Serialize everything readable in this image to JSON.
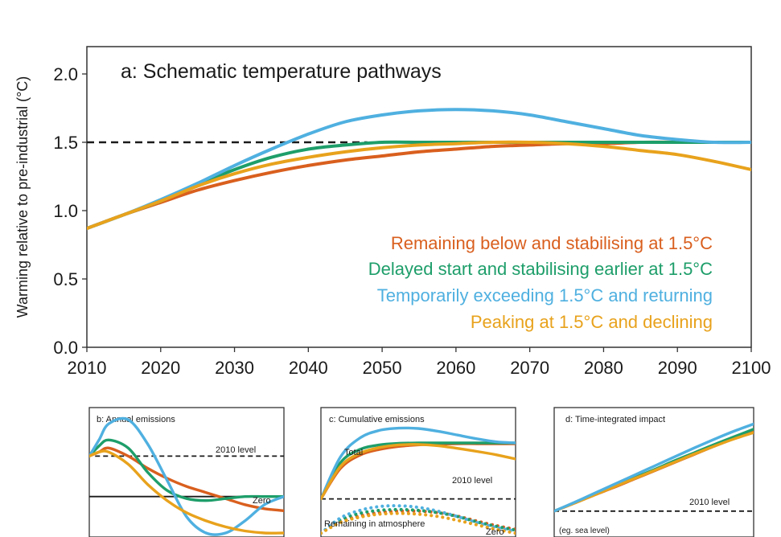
{
  "chart_data": [
    {
      "type": "line",
      "panel": "a",
      "title": "a: Schematic temperature pathways",
      "xlabel": "",
      "ylabel": "Warming relative to pre-industrial (°C)",
      "xlim": [
        2010,
        2100
      ],
      "ylim": [
        0.0,
        2.2
      ],
      "xticks": [
        "2010",
        "2020",
        "2030",
        "2040",
        "2050",
        "2060",
        "2070",
        "2080",
        "2090",
        "2100"
      ],
      "yticks": [
        "0.0",
        "0.5",
        "1.0",
        "1.5",
        "2.0"
      ],
      "grid": false,
      "legend_position": "bottom-right",
      "reference_lines": [
        {
          "y": 1.5,
          "x_from": 2010,
          "x_to": 2048,
          "style": "dashed",
          "color": "#1a1a1a"
        }
      ],
      "series": [
        {
          "name": "Remaining below and stabilising at 1.5°C",
          "color": "#D95F1E",
          "x": [
            2010,
            2015,
            2020,
            2025,
            2030,
            2035,
            2040,
            2045,
            2050,
            2055,
            2060,
            2065,
            2070,
            2075,
            2080,
            2085,
            2090,
            2095,
            2100
          ],
          "y": [
            0.87,
            0.97,
            1.06,
            1.15,
            1.22,
            1.28,
            1.33,
            1.37,
            1.4,
            1.43,
            1.45,
            1.47,
            1.48,
            1.49,
            1.49,
            1.5,
            1.5,
            1.5,
            1.5
          ]
        },
        {
          "name": "Delayed start and stabilising earlier at 1.5°C",
          "color": "#1E9E6A",
          "x": [
            2010,
            2015,
            2020,
            2025,
            2030,
            2035,
            2040,
            2045,
            2050,
            2055,
            2060,
            2065,
            2070,
            2075,
            2080,
            2085,
            2090,
            2095,
            2100
          ],
          "y": [
            0.87,
            0.97,
            1.07,
            1.19,
            1.3,
            1.39,
            1.45,
            1.48,
            1.5,
            1.5,
            1.5,
            1.5,
            1.5,
            1.5,
            1.5,
            1.5,
            1.5,
            1.5,
            1.5
          ]
        },
        {
          "name": "Temporarily exceeding 1.5°C and returning",
          "color": "#4FB0E0",
          "x": [
            2010,
            2015,
            2020,
            2025,
            2030,
            2035,
            2040,
            2045,
            2050,
            2055,
            2060,
            2065,
            2070,
            2075,
            2080,
            2085,
            2090,
            2095,
            2100
          ],
          "y": [
            0.87,
            0.97,
            1.08,
            1.2,
            1.33,
            1.45,
            1.56,
            1.65,
            1.7,
            1.73,
            1.74,
            1.73,
            1.7,
            1.65,
            1.6,
            1.55,
            1.52,
            1.5,
            1.5
          ]
        },
        {
          "name": "Peaking at 1.5°C and declining",
          "color": "#E8A21C",
          "x": [
            2010,
            2015,
            2020,
            2025,
            2030,
            2035,
            2040,
            2045,
            2050,
            2055,
            2060,
            2065,
            2070,
            2075,
            2080,
            2085,
            2090,
            2095,
            2100
          ],
          "y": [
            0.87,
            0.97,
            1.07,
            1.18,
            1.27,
            1.34,
            1.39,
            1.43,
            1.46,
            1.48,
            1.49,
            1.5,
            1.5,
            1.49,
            1.47,
            1.44,
            1.41,
            1.36,
            1.3
          ]
        }
      ]
    },
    {
      "type": "line",
      "panel": "b",
      "title": "b: Annual emissions",
      "xlim": [
        0,
        10
      ],
      "ylim": [
        -1.0,
        2.2
      ],
      "annotations": [
        "2010 level",
        "Zero"
      ],
      "reference_lines": [
        {
          "y": 1.0,
          "x_from": 0.3,
          "x_to": 10,
          "style": "dashed",
          "label": "2010 level"
        },
        {
          "y": 0.0,
          "x_from": 0,
          "x_to": 10,
          "style": "solid",
          "label": "Zero"
        }
      ],
      "series": [
        {
          "color": "#D95F1E",
          "x": [
            0,
            0.5,
            1,
            2,
            3,
            4,
            5,
            6,
            7,
            8,
            9,
            10
          ],
          "y": [
            1.0,
            1.1,
            1.2,
            1.0,
            0.7,
            0.45,
            0.25,
            0.1,
            -0.05,
            -0.2,
            -0.3,
            -0.35
          ]
        },
        {
          "color": "#1E9E6A",
          "x": [
            0,
            0.5,
            1,
            2,
            3,
            4,
            5,
            6,
            7,
            8,
            9,
            10
          ],
          "y": [
            1.0,
            1.25,
            1.4,
            1.2,
            0.6,
            0.15,
            -0.05,
            -0.1,
            -0.05,
            0.0,
            0.0,
            0.0
          ]
        },
        {
          "color": "#4FB0E0",
          "x": [
            0,
            0.5,
            1,
            2,
            3,
            4,
            5,
            6,
            7,
            8,
            9,
            10
          ],
          "y": [
            1.0,
            1.4,
            1.8,
            1.9,
            1.3,
            0.4,
            -0.5,
            -0.9,
            -0.9,
            -0.6,
            -0.2,
            0.0
          ]
        },
        {
          "color": "#E8A21C",
          "x": [
            0,
            0.5,
            1,
            2,
            3,
            4,
            5,
            6,
            7,
            8,
            9,
            10
          ],
          "y": [
            1.0,
            1.1,
            1.1,
            0.8,
            0.3,
            -0.1,
            -0.4,
            -0.6,
            -0.75,
            -0.85,
            -0.9,
            -0.9
          ]
        }
      ]
    },
    {
      "type": "line",
      "panel": "c",
      "title": "c: Cumulative emissions",
      "xlim": [
        0,
        10
      ],
      "ylim": [
        -1.0,
        2.4
      ],
      "annotations": [
        "Total",
        "2010 level",
        "Remaining in atmosphere",
        "Zero"
      ],
      "reference_lines": [
        {
          "y": 0.0,
          "x_from": 0,
          "x_to": 10,
          "style": "dashed",
          "label": "2010 level"
        }
      ],
      "series": [
        {
          "color": "#D95F1E",
          "x": [
            0,
            1,
            2,
            3,
            4,
            5,
            6,
            7,
            8,
            9,
            10
          ],
          "y": [
            0.0,
            0.8,
            1.15,
            1.3,
            1.38,
            1.42,
            1.44,
            1.45,
            1.45,
            1.45,
            1.45
          ]
        },
        {
          "color": "#1E9E6A",
          "x": [
            0,
            1,
            2,
            3,
            4,
            5,
            6,
            7,
            8,
            9,
            10
          ],
          "y": [
            0.0,
            0.95,
            1.3,
            1.42,
            1.46,
            1.47,
            1.47,
            1.47,
            1.47,
            1.47,
            1.47
          ]
        },
        {
          "color": "#4FB0E0",
          "x": [
            0,
            1,
            2,
            3,
            4,
            5,
            6,
            7,
            8,
            9,
            10
          ],
          "y": [
            0.0,
            1.1,
            1.6,
            1.8,
            1.86,
            1.85,
            1.78,
            1.68,
            1.58,
            1.5,
            1.47
          ]
        },
        {
          "color": "#E8A21C",
          "x": [
            0,
            1,
            2,
            3,
            4,
            5,
            6,
            7,
            8,
            9,
            10
          ],
          "y": [
            0.0,
            0.85,
            1.2,
            1.35,
            1.42,
            1.43,
            1.4,
            1.33,
            1.25,
            1.16,
            1.05
          ]
        },
        {
          "color": "#D95F1E",
          "style": "dotted",
          "x": [
            0,
            1,
            2,
            3,
            4,
            5,
            6,
            7,
            8,
            9,
            10
          ],
          "y": [
            -0.9,
            -0.6,
            -0.45,
            -0.36,
            -0.32,
            -0.32,
            -0.36,
            -0.45,
            -0.58,
            -0.7,
            -0.8
          ]
        },
        {
          "color": "#1E9E6A",
          "style": "dotted",
          "x": [
            0,
            1,
            2,
            3,
            4,
            5,
            6,
            7,
            8,
            9,
            10
          ],
          "y": [
            -0.9,
            -0.55,
            -0.38,
            -0.3,
            -0.28,
            -0.3,
            -0.36,
            -0.46,
            -0.6,
            -0.72,
            -0.82
          ]
        },
        {
          "color": "#4FB0E0",
          "style": "dotted",
          "x": [
            0,
            1,
            2,
            3,
            4,
            5,
            6,
            7,
            8,
            9,
            10
          ],
          "y": [
            -0.9,
            -0.5,
            -0.3,
            -0.2,
            -0.18,
            -0.22,
            -0.32,
            -0.46,
            -0.62,
            -0.75,
            -0.85
          ]
        },
        {
          "color": "#E8A21C",
          "style": "dotted",
          "x": [
            0,
            1,
            2,
            3,
            4,
            5,
            6,
            7,
            8,
            9,
            10
          ],
          "y": [
            -0.9,
            -0.62,
            -0.48,
            -0.4,
            -0.38,
            -0.4,
            -0.46,
            -0.56,
            -0.68,
            -0.8,
            -0.9
          ]
        }
      ]
    },
    {
      "type": "line",
      "panel": "d",
      "title": "d: Time-integrated impact",
      "xlim": [
        0,
        10
      ],
      "ylim": [
        -0.6,
        2.4
      ],
      "annotations": [
        "2010 level",
        "(eg. sea level)"
      ],
      "reference_lines": [
        {
          "y": 0.0,
          "x_from": 0,
          "x_to": 10,
          "style": "dashed",
          "label": "2010 level"
        }
      ],
      "series": [
        {
          "color": "#D95F1E",
          "x": [
            0,
            1,
            2,
            3,
            4,
            5,
            6,
            7,
            8,
            9,
            10
          ],
          "y": [
            0.0,
            0.18,
            0.37,
            0.55,
            0.74,
            0.93,
            1.12,
            1.31,
            1.5,
            1.68,
            1.85
          ]
        },
        {
          "color": "#1E9E6A",
          "x": [
            0,
            1,
            2,
            3,
            4,
            5,
            6,
            7,
            8,
            9,
            10
          ],
          "y": [
            0.0,
            0.19,
            0.39,
            0.58,
            0.77,
            0.96,
            1.16,
            1.35,
            1.54,
            1.72,
            1.9
          ]
        },
        {
          "color": "#E8A21C",
          "x": [
            0,
            1,
            2,
            3,
            4,
            5,
            6,
            7,
            8,
            9,
            10
          ],
          "y": [
            0.0,
            0.18,
            0.37,
            0.56,
            0.75,
            0.94,
            1.13,
            1.32,
            1.5,
            1.67,
            1.82
          ]
        },
        {
          "color": "#4FB0E0",
          "x": [
            0,
            1,
            2,
            3,
            4,
            5,
            6,
            7,
            8,
            9,
            10
          ],
          "y": [
            0.0,
            0.2,
            0.41,
            0.62,
            0.83,
            1.04,
            1.25,
            1.46,
            1.66,
            1.85,
            2.02
          ]
        }
      ]
    }
  ]
}
